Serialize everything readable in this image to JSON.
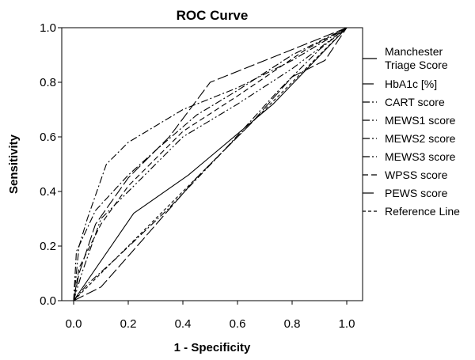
{
  "chart_data": {
    "type": "line",
    "title": "ROC Curve",
    "xlabel": "1 - Specificity",
    "ylabel": "Sensitivity",
    "xlim": [
      0,
      1
    ],
    "ylim": [
      0,
      1
    ],
    "x_ticks": [
      "0.0",
      "0.2",
      "0.4",
      "0.6",
      "0.8",
      "1.0"
    ],
    "y_ticks": [
      "0.0",
      "0.2",
      "0.4",
      "0.6",
      "0.8",
      "1.0"
    ],
    "grid": false,
    "legend_position": "right",
    "series": [
      {
        "name": "Manchester Triage Score",
        "dash": "solid",
        "points": [
          [
            0,
            0
          ],
          [
            0.22,
            0.32
          ],
          [
            0.42,
            0.46
          ],
          [
            0.73,
            0.72
          ],
          [
            1,
            1
          ]
        ]
      },
      {
        "name": "HbA1c [%]",
        "dash": "long-dash",
        "points": [
          [
            0,
            0
          ],
          [
            0.02,
            0.1
          ],
          [
            0.08,
            0.28
          ],
          [
            0.2,
            0.45
          ],
          [
            0.35,
            0.6
          ],
          [
            0.5,
            0.8
          ],
          [
            0.75,
            0.9
          ],
          [
            1,
            1
          ]
        ]
      },
      {
        "name": "CART score",
        "dash": "dash-dot",
        "points": [
          [
            0,
            0
          ],
          [
            0.02,
            0.2
          ],
          [
            0.05,
            0.3
          ],
          [
            0.12,
            0.5
          ],
          [
            0.2,
            0.58
          ],
          [
            0.4,
            0.7
          ],
          [
            0.6,
            0.78
          ],
          [
            0.8,
            0.88
          ],
          [
            1,
            1
          ]
        ]
      },
      {
        "name": "MEWS1 score",
        "dash": "dash-dot",
        "points": [
          [
            0,
            0
          ],
          [
            0.01,
            0.18
          ],
          [
            0.08,
            0.33
          ],
          [
            0.2,
            0.46
          ],
          [
            0.3,
            0.55
          ],
          [
            0.45,
            0.68
          ],
          [
            0.6,
            0.77
          ],
          [
            0.8,
            0.9
          ],
          [
            1,
            1
          ]
        ]
      },
      {
        "name": "MEWS2 score",
        "dash": "dash-dot-dot",
        "points": [
          [
            0,
            0
          ],
          [
            0.03,
            0.1
          ],
          [
            0.1,
            0.3
          ],
          [
            0.25,
            0.45
          ],
          [
            0.4,
            0.6
          ],
          [
            0.6,
            0.72
          ],
          [
            0.8,
            0.85
          ],
          [
            1,
            1
          ]
        ]
      },
      {
        "name": "MEWS3 score",
        "dash": "dash-dot",
        "points": [
          [
            0,
            0
          ],
          [
            0.05,
            0.06
          ],
          [
            0.15,
            0.15
          ],
          [
            0.35,
            0.34
          ],
          [
            0.55,
            0.55
          ],
          [
            0.75,
            0.77
          ],
          [
            0.9,
            0.92
          ],
          [
            1,
            1
          ]
        ]
      },
      {
        "name": "WPSS score",
        "dash": "dash",
        "points": [
          [
            0,
            0
          ],
          [
            0.02,
            0.12
          ],
          [
            0.1,
            0.28
          ],
          [
            0.2,
            0.42
          ],
          [
            0.4,
            0.62
          ],
          [
            0.6,
            0.75
          ],
          [
            0.85,
            0.92
          ],
          [
            1,
            1
          ]
        ]
      },
      {
        "name": "PEWS score",
        "dash": "long-dash",
        "points": [
          [
            0,
            0
          ],
          [
            0.1,
            0.05
          ],
          [
            0.25,
            0.22
          ],
          [
            0.45,
            0.45
          ],
          [
            0.65,
            0.65
          ],
          [
            0.8,
            0.82
          ],
          [
            0.92,
            0.88
          ],
          [
            1,
            1
          ]
        ]
      },
      {
        "name": "Reference Line",
        "dash": "fine-dash",
        "points": [
          [
            0,
            0
          ],
          [
            1,
            1
          ]
        ]
      }
    ]
  }
}
